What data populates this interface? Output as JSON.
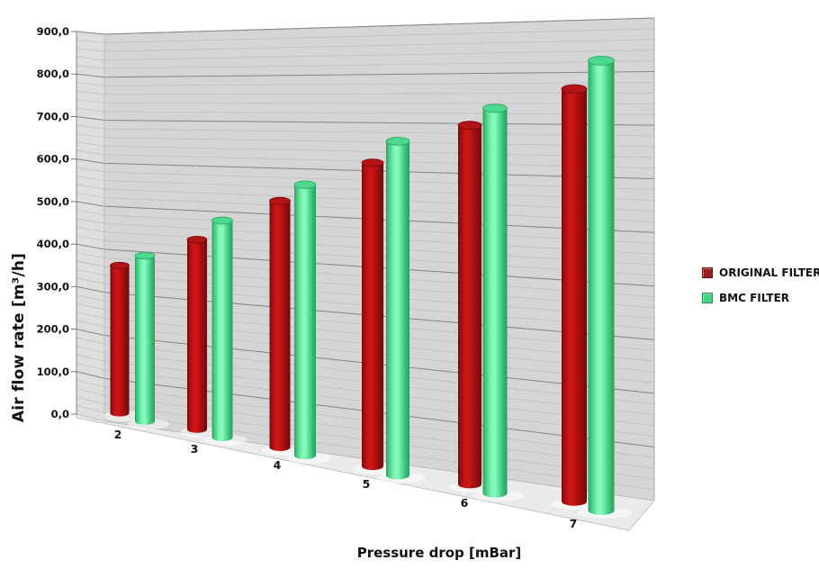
{
  "chart_data": {
    "type": "bar",
    "subtype": "3d-cylinder",
    "title": "",
    "xlabel": "Pressure drop [mBar]",
    "ylabel": "Air flow rate [m³/h]",
    "categories": [
      "2",
      "3",
      "4",
      "5",
      "6",
      "7"
    ],
    "series": [
      {
        "name": "ORIGINAL FILTER",
        "color": "#9e1b1b",
        "values": [
          350,
          420,
          510,
          600,
          690,
          770
        ]
      },
      {
        "name": "BMC FILTER",
        "color": "#44d584",
        "values": [
          380,
          460,
          550,
          650,
          725,
          830
        ]
      }
    ],
    "ylim": [
      0,
      900
    ],
    "y_major_step": 100,
    "y_minor_step": 20,
    "y_tick_labels": [
      "0,0",
      "100,0",
      "200,0",
      "300,0",
      "400,0",
      "500,0",
      "600,0",
      "700,0",
      "800,0",
      "900,0"
    ],
    "grid": true,
    "legend_position": "right",
    "wall_color": "#d5d5d5",
    "side_wall_color": "#dedede",
    "floor_color": "#eaeaea",
    "grid_major_color": "#858585",
    "grid_minor_color": "#bdbdbd",
    "text_color": "#111111"
  }
}
